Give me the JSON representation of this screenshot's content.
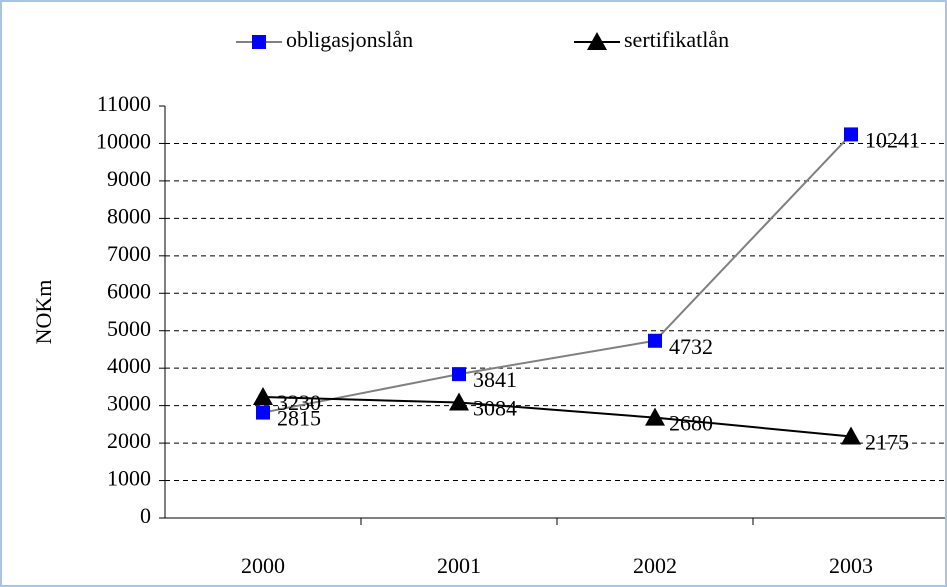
{
  "chart_data": {
    "type": "line",
    "categories": [
      "2000",
      "2001",
      "2002",
      "2003"
    ],
    "series": [
      {
        "name": "obligasjonslån",
        "color": "#0000ff",
        "line_color": "#808080",
        "marker": "square",
        "values": [
          2815,
          3841,
          4732,
          10241
        ]
      },
      {
        "name": "sertifikatlån",
        "color": "#000000",
        "line_color": "#000000",
        "marker": "triangle",
        "values": [
          3230,
          3084,
          2680,
          2175
        ]
      }
    ],
    "ylabel": "NOKm",
    "ylim": [
      0,
      11000
    ],
    "yticks": [
      0,
      1000,
      2000,
      3000,
      4000,
      5000,
      6000,
      7000,
      8000,
      9000,
      10000,
      11000
    ],
    "grid": true,
    "legend": "top"
  }
}
